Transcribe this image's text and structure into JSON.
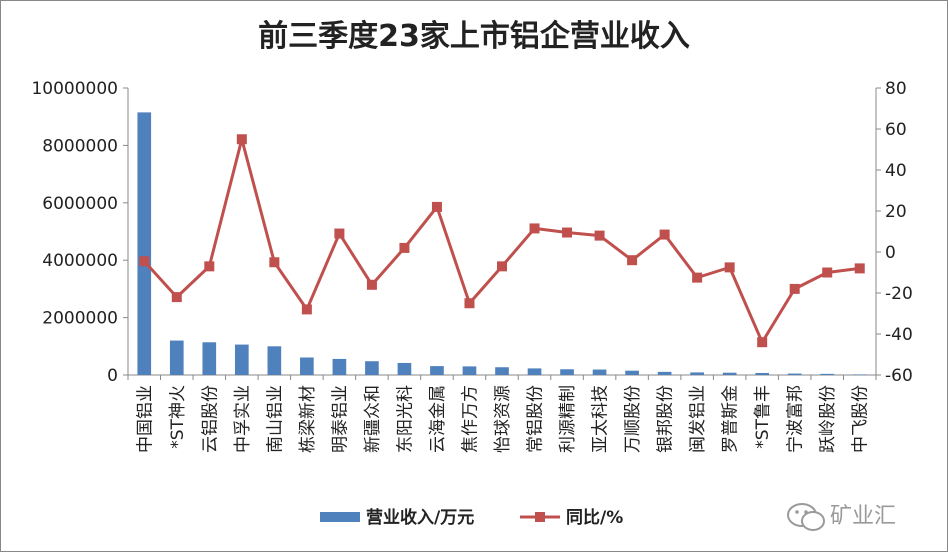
{
  "chart_data": {
    "type": "bar",
    "title": "前三季度23家上市铝企营业收入",
    "categories": [
      "中国铝业",
      "*ST神火",
      "云铝股份",
      "中孚实业",
      "南山铝业",
      "栋梁新材",
      "明泰铝业",
      "新疆众和",
      "东阳光科",
      "云海金属",
      "焦作万方",
      "怡球资源",
      "常铝股份",
      "利源精制",
      "亚太科技",
      "万顺股份",
      "银邦股份",
      "闽发铝业",
      "罗普斯金",
      "*ST鲁丰",
      "宁波富邦",
      "跃岭股份",
      "中飞股份"
    ],
    "series": [
      {
        "name": "营业收入/万元",
        "type": "bar",
        "axis": "left",
        "color": "#4f81bd",
        "values": [
          9150000,
          1200000,
          1140000,
          1060000,
          1000000,
          610000,
          560000,
          480000,
          420000,
          310000,
          300000,
          270000,
          230000,
          200000,
          190000,
          150000,
          110000,
          90000,
          80000,
          70000,
          50000,
          40000,
          20000
        ]
      },
      {
        "name": "同比/%",
        "type": "line",
        "axis": "right",
        "color": "#c0504d",
        "values": [
          -4.5,
          -22,
          -7,
          55,
          -5,
          -28,
          9,
          -16,
          2,
          22,
          -25,
          -7,
          11.5,
          9.5,
          8,
          -4,
          8.5,
          -12.5,
          -7.5,
          -44,
          -18,
          -10,
          -8
        ]
      }
    ],
    "y_left": {
      "min": 0,
      "max": 10000000,
      "step": 2000000,
      "ticks": [
        "0",
        "2000000",
        "4000000",
        "6000000",
        "8000000",
        "10000000"
      ]
    },
    "y_right": {
      "min": -60,
      "max": 80,
      "step": 20,
      "ticks": [
        "-60",
        "-40",
        "-20",
        "0",
        "20",
        "40",
        "60",
        "80"
      ]
    },
    "grid": false,
    "legend_position": "bottom"
  },
  "watermark": {
    "text": "矿业汇",
    "icon": "wechat-icon"
  }
}
